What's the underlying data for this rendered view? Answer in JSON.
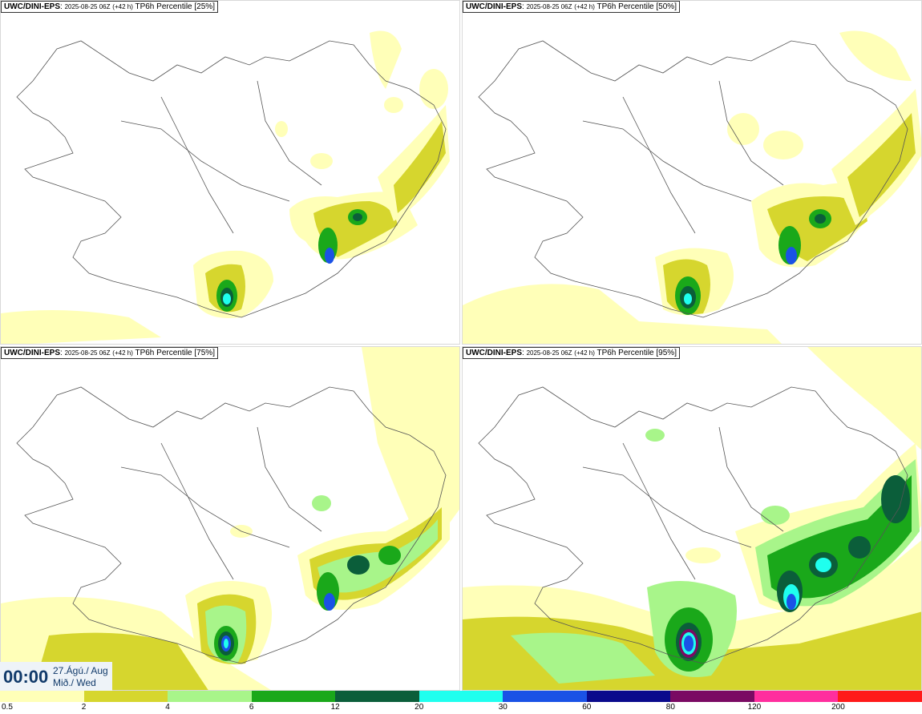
{
  "panels": [
    {
      "model": "UWC/DINI-EPS",
      "run": "2025-08-25 06Z",
      "lead": "(+42 h)",
      "product": "TP6h Percentile [25%]"
    },
    {
      "model": "UWC/DINI-EPS",
      "run": "2025-08-25 06Z",
      "lead": "(+42 h)",
      "product": "TP6h Percentile [50%]"
    },
    {
      "model": "UWC/DINI-EPS",
      "run": "2025-08-25 06Z",
      "lead": "(+42 h)",
      "product": "TP6h Percentile [75%]"
    },
    {
      "model": "UWC/DINI-EPS",
      "run": "2025-08-25 06Z",
      "lead": "(+42 h)",
      "product": "TP6h Percentile [95%]"
    }
  ],
  "valid_time": {
    "clock": "00:00",
    "date": "27.Ágú./ Aug",
    "weekday": "Mið./ Wed"
  },
  "legend": {
    "ticks": [
      "0.5",
      "2",
      "4",
      "6",
      "12",
      "20",
      "30",
      "60",
      "80",
      "120",
      "200"
    ],
    "colors": [
      "#ffffb8",
      "#d6d62e",
      "#a8f58a",
      "#1aa81a",
      "#0b5e3a",
      "#1fffee",
      "#1a52e6",
      "#0a0a8c",
      "#7a0a63",
      "#ff2e9e",
      "#ff1a1a"
    ]
  },
  "map_colors": {
    "light_yellow": "#ffffb8",
    "olive": "#d6d62e",
    "light_green": "#a8f58a",
    "green": "#1aa81a",
    "dark_green": "#0b5e3a",
    "cyan": "#1fffee",
    "blue": "#1a52e6"
  }
}
